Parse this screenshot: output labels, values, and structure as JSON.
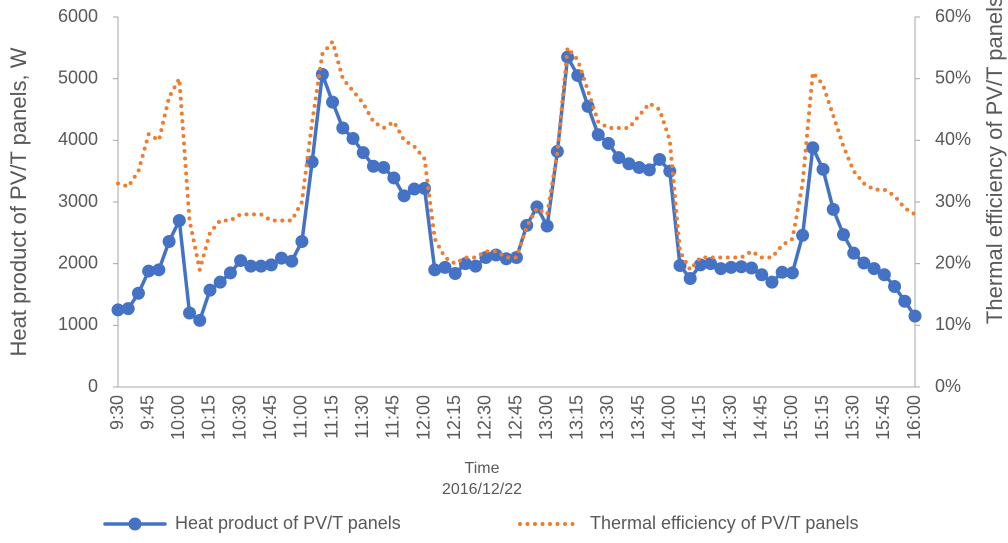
{
  "chart_data": {
    "type": "line",
    "xlabel": "Time",
    "xlabel_sub": "2016/12/22",
    "ylabel": "Heat product of PV/T panels, W",
    "y2label": "Thermal efficiency of PV/T panels",
    "categories": [
      "9:30",
      null,
      null,
      "9:45",
      null,
      null,
      "10:00",
      null,
      null,
      "10:15",
      null,
      null,
      "10:30",
      null,
      null,
      "10:45",
      null,
      null,
      "11:00",
      null,
      null,
      "11:15",
      null,
      null,
      "11:30",
      null,
      null,
      "11:45",
      null,
      null,
      "12:00",
      null,
      null,
      "12:15",
      null,
      null,
      "12:30",
      null,
      null,
      "12:45",
      null,
      null,
      "13:00",
      null,
      null,
      "13:15",
      null,
      null,
      "13:30",
      null,
      null,
      "13:45",
      null,
      null,
      "14:00",
      null,
      null,
      "14:15",
      null,
      null,
      "14:30",
      null,
      null,
      "14:45",
      null,
      null,
      "15:00",
      null,
      null,
      "15:15",
      null,
      null,
      "15:30",
      null,
      null,
      "15:45",
      null,
      null,
      "16:00"
    ],
    "series": [
      {
        "name": "Heat product of PV/T panels",
        "color": "#4472c4",
        "style": "line-marker",
        "values": [
          1250,
          1270,
          1520,
          1880,
          1900,
          2360,
          2700,
          1200,
          1080,
          1570,
          1700,
          1850,
          2050,
          1960,
          1960,
          1980,
          2090,
          2040,
          2360,
          3650,
          5070,
          4620,
          4200,
          4030,
          3800,
          3580,
          3560,
          3390,
          3100,
          3210,
          3220,
          1900,
          1940,
          1840,
          2000,
          1960,
          2100,
          2140,
          2080,
          2100,
          2620,
          2920,
          2610,
          3820,
          5350,
          5050,
          4550,
          4090,
          3950,
          3720,
          3620,
          3560,
          3520,
          3690,
          3500,
          1970,
          1760,
          1980,
          2000,
          1920,
          1940,
          1950,
          1930,
          1820,
          1700,
          1860,
          1850,
          2460,
          3880,
          3530,
          2880,
          2470,
          2170,
          2010,
          1920,
          1820,
          1630,
          1390,
          1150
        ]
      },
      {
        "name": "Thermal efficiency of PV/T panels",
        "color": "#ed7d31",
        "style": "dotted",
        "axis": "y2",
        "values": [
          33,
          32.5,
          35,
          41,
          40,
          47,
          50,
          27,
          19,
          25,
          27,
          27,
          28,
          28,
          28,
          27,
          27,
          27,
          30,
          43,
          54,
          56,
          50,
          48,
          46,
          43,
          42,
          43,
          40,
          39,
          37,
          24,
          21,
          20,
          21,
          21,
          22,
          22,
          21,
          21,
          26,
          29,
          28,
          38,
          55,
          53,
          48,
          43,
          42,
          42,
          42,
          44,
          46,
          45,
          40,
          22,
          19,
          21,
          21,
          21,
          21,
          21,
          22,
          21,
          21,
          23,
          24,
          33,
          51,
          49,
          44,
          39,
          35,
          33,
          32,
          32,
          31,
          29,
          28
        ]
      }
    ],
    "ylim": [
      0,
      6000
    ],
    "yticks": [
      0,
      1000,
      2000,
      3000,
      4000,
      5000,
      6000
    ],
    "y2lim": [
      0,
      60
    ],
    "y2ticks": [
      {
        "value": 0,
        "label": "0%"
      },
      {
        "value": 10,
        "label": "10%"
      },
      {
        "value": 20,
        "label": "20%"
      },
      {
        "value": 30,
        "label": "30%"
      },
      {
        "value": 40,
        "label": "40%"
      },
      {
        "value": 50,
        "label": "50%"
      },
      {
        "value": 60,
        "label": "60%"
      }
    ],
    "grid": false,
    "legend": "bottom"
  }
}
